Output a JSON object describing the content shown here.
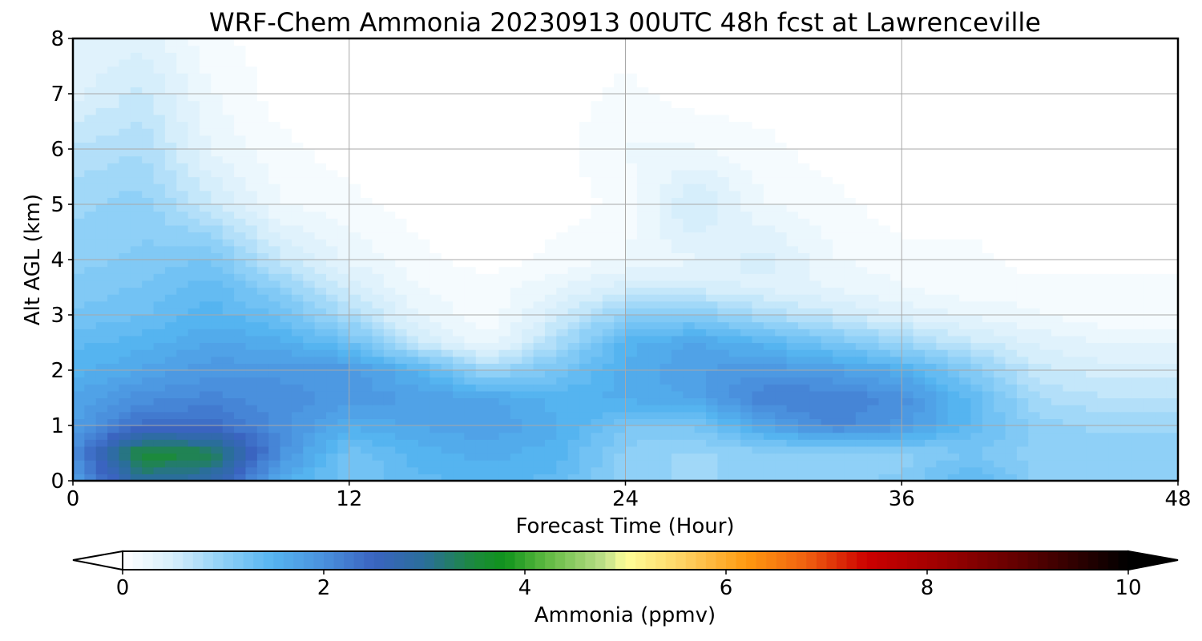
{
  "chart_data": {
    "type": "heatmap",
    "title": "WRF-Chem Ammonia  20230913 00UTC 48h fcst at Lawrenceville",
    "xlabel": "Forecast Time (Hour)",
    "ylabel": "Alt AGL (km)",
    "xlim": [
      0,
      48
    ],
    "ylim": [
      0,
      8
    ],
    "xticks": [
      0,
      12,
      24,
      36,
      48
    ],
    "yticks": [
      0,
      1,
      2,
      3,
      4,
      5,
      6,
      7,
      8
    ],
    "grid": true,
    "x": [
      0,
      3,
      6,
      9,
      12,
      15,
      18,
      21,
      24,
      27,
      30,
      33,
      36,
      39,
      42,
      45,
      48
    ],
    "y": [
      0,
      0.5,
      1,
      1.5,
      2,
      2.5,
      3,
      3.5,
      4,
      5,
      6,
      7,
      8
    ],
    "z": [
      [
        1.8,
        3.0,
        2.8,
        1.6,
        1.2,
        1.4,
        1.5,
        1.4,
        1.0,
        0.9,
        1.0,
        1.0,
        1.1,
        1.5,
        1.0,
        1.0,
        1.0
      ],
      [
        2.0,
        3.6,
        3.4,
        2.0,
        1.2,
        1.5,
        1.6,
        1.5,
        1.0,
        0.9,
        1.0,
        1.0,
        1.0,
        1.2,
        1.0,
        1.0,
        1.0
      ],
      [
        1.8,
        2.4,
        2.4,
        2.0,
        1.6,
        1.7,
        1.8,
        1.6,
        1.2,
        1.2,
        1.7,
        2.1,
        1.9,
        1.4,
        1.0,
        0.9,
        0.9
      ],
      [
        1.7,
        2.0,
        2.1,
        2.0,
        1.9,
        1.8,
        1.7,
        1.5,
        1.6,
        1.7,
        2.2,
        2.2,
        2.0,
        1.4,
        0.8,
        0.7,
        0.7
      ],
      [
        1.5,
        1.7,
        1.9,
        1.9,
        1.9,
        1.5,
        0.9,
        1.2,
        1.6,
        1.8,
        1.9,
        1.8,
        1.6,
        1.1,
        0.6,
        0.5,
        0.5
      ],
      [
        1.4,
        1.5,
        1.7,
        1.6,
        1.3,
        0.6,
        0.2,
        0.8,
        1.5,
        1.7,
        1.5,
        1.2,
        0.9,
        0.6,
        0.4,
        0.3,
        0.3
      ],
      [
        1.2,
        1.3,
        1.5,
        1.3,
        0.8,
        0.3,
        0.1,
        0.5,
        1.0,
        1.1,
        0.8,
        0.6,
        0.4,
        0.3,
        0.2,
        0.1,
        0.1
      ],
      [
        1.1,
        1.2,
        1.4,
        1.0,
        0.5,
        0.2,
        0.1,
        0.3,
        0.5,
        0.5,
        0.4,
        0.3,
        0.2,
        0.1,
        0.1,
        0.1,
        0.1
      ],
      [
        1.0,
        1.1,
        1.2,
        0.6,
        0.3,
        0.1,
        0.0,
        0.1,
        0.2,
        0.3,
        0.5,
        0.2,
        0.1,
        0.1,
        0.0,
        0.0,
        0.0
      ],
      [
        0.9,
        1.0,
        0.6,
        0.2,
        0.1,
        0.0,
        0.0,
        0.0,
        0.1,
        0.6,
        0.2,
        0.1,
        0.0,
        0.0,
        0.0,
        0.0,
        0.0
      ],
      [
        0.7,
        0.8,
        0.3,
        0.1,
        0.0,
        0.0,
        0.0,
        0.0,
        0.2,
        0.2,
        0.1,
        0.0,
        0.0,
        0.0,
        0.0,
        0.0,
        0.0
      ],
      [
        0.4,
        0.6,
        0.2,
        0.0,
        0.0,
        0.0,
        0.0,
        0.0,
        0.1,
        0.0,
        0.0,
        0.0,
        0.0,
        0.0,
        0.0,
        0.0,
        0.0
      ],
      [
        0.3,
        0.4,
        0.1,
        0.0,
        0.0,
        0.0,
        0.0,
        0.0,
        0.0,
        0.0,
        0.0,
        0.0,
        0.0,
        0.0,
        0.0,
        0.0,
        0.0
      ]
    ],
    "colorbar": {
      "label": "Ammonia  (ppmv)",
      "min": 0,
      "max": 10,
      "ticks": [
        0,
        2,
        4,
        6,
        8,
        10
      ],
      "extend": "both",
      "orientation": "horizontal",
      "placement": "bottom",
      "stops": [
        {
          "value": 0.0,
          "color": "#ffffff"
        },
        {
          "value": 0.5,
          "color": "#d6eefb"
        },
        {
          "value": 1.0,
          "color": "#8fd0f7"
        },
        {
          "value": 1.5,
          "color": "#55b4f0"
        },
        {
          "value": 2.0,
          "color": "#4a90dd"
        },
        {
          "value": 2.5,
          "color": "#3a64c0"
        },
        {
          "value": 3.0,
          "color": "#2a6e9a"
        },
        {
          "value": 3.5,
          "color": "#1c8a3c"
        },
        {
          "value": 3.8,
          "color": "#10931c"
        },
        {
          "value": 4.2,
          "color": "#5db840"
        },
        {
          "value": 4.8,
          "color": "#c0e08a"
        },
        {
          "value": 5.0,
          "color": "#ffff99"
        },
        {
          "value": 5.6,
          "color": "#ffd060"
        },
        {
          "value": 6.2,
          "color": "#ff9a10"
        },
        {
          "value": 6.8,
          "color": "#f06010"
        },
        {
          "value": 7.4,
          "color": "#cc0000"
        },
        {
          "value": 8.2,
          "color": "#990000"
        },
        {
          "value": 9.0,
          "color": "#5a0000"
        },
        {
          "value": 10.0,
          "color": "#000000"
        }
      ]
    }
  }
}
